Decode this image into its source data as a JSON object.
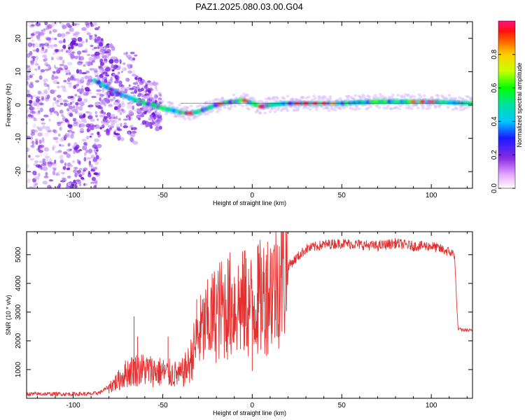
{
  "title": "PAZ1.2025.080.03.00.G04",
  "colors": {
    "snr_line": "#e53030",
    "spectrogram_ridge": "#ff2020",
    "spectrogram_scatter": "#7a1fe0",
    "frame": "#000000"
  },
  "chart_data": [
    {
      "type": "heatmap",
      "name": "spectrogram",
      "xlabel": "Height of straight line (km)",
      "ylabel": "Frequency (Hz)",
      "xlim": [
        -126,
        123
      ],
      "ylim": [
        -25,
        25
      ],
      "xticks": [
        -100,
        -50,
        0,
        50,
        100
      ],
      "yticks": [
        -20,
        -10,
        0,
        10,
        20
      ],
      "grid": false,
      "ridge": {
        "x": [
          -90,
          -85,
          -80,
          -75,
          -70,
          -65,
          -60,
          -55,
          -50,
          -45,
          -40,
          -35,
          -30,
          -25,
          -20,
          -15,
          -10,
          -5,
          0,
          5,
          10,
          20,
          30,
          40,
          50,
          60,
          70,
          80,
          90,
          100,
          110,
          120
        ],
        "y": [
          8,
          6.5,
          5,
          3.5,
          2.5,
          1.5,
          0.5,
          0,
          -1,
          -1.5,
          -2.2,
          -2.5,
          -2,
          -1,
          0,
          0.8,
          1,
          1.5,
          0.5,
          -0.5,
          0,
          0.5,
          0.5,
          0.5,
          0.5,
          0.8,
          1,
          1,
          1,
          1,
          0.8,
          0.5
        ]
      },
      "colorbar": {
        "label": "Normalized spectral amplitude",
        "ticks": [
          0.0,
          0.2,
          0.4,
          0.6,
          0.8
        ],
        "range": [
          0,
          1
        ]
      }
    },
    {
      "type": "line",
      "name": "snr",
      "xlabel": "Height of straight line (km)",
      "ylabel": "SNR (10 * v/v)",
      "xlim": [
        -126,
        123
      ],
      "ylim": [
        0,
        5800
      ],
      "xticks": [
        -100,
        -50,
        0,
        50,
        100
      ],
      "yticks": [
        1000,
        2000,
        3000,
        4000,
        5000
      ],
      "grid": false,
      "envelope": {
        "x": [
          -126,
          -100,
          -90,
          -85,
          -80,
          -75,
          -70,
          -65,
          -60,
          -50,
          -40,
          -35,
          -30,
          -25,
          -20,
          -10,
          0,
          10,
          20,
          30,
          40,
          50,
          60,
          70,
          80,
          90,
          100,
          105,
          110,
          113,
          114,
          115,
          123
        ],
        "y": [
          150,
          150,
          150,
          200,
          400,
          600,
          900,
          1000,
          1000,
          900,
          800,
          1200,
          2200,
          2600,
          3000,
          3300,
          3200,
          3800,
          4600,
          5200,
          5350,
          5400,
          5350,
          5300,
          5400,
          5300,
          5300,
          5200,
          5100,
          5000,
          3500,
          2400,
          2350
        ]
      },
      "spikes": [
        {
          "x": -66,
          "y": 2850
        },
        {
          "x": -64,
          "y": 2150
        },
        {
          "x": -47,
          "y": 2150
        },
        {
          "x": -31,
          "y": 3450
        },
        {
          "x": -25,
          "y": 3800
        },
        {
          "x": -4,
          "y": 5150
        },
        {
          "x": 0,
          "y": 950
        },
        {
          "x": 3,
          "y": 5300
        },
        {
          "x": 8,
          "y": 5000
        }
      ]
    }
  ]
}
